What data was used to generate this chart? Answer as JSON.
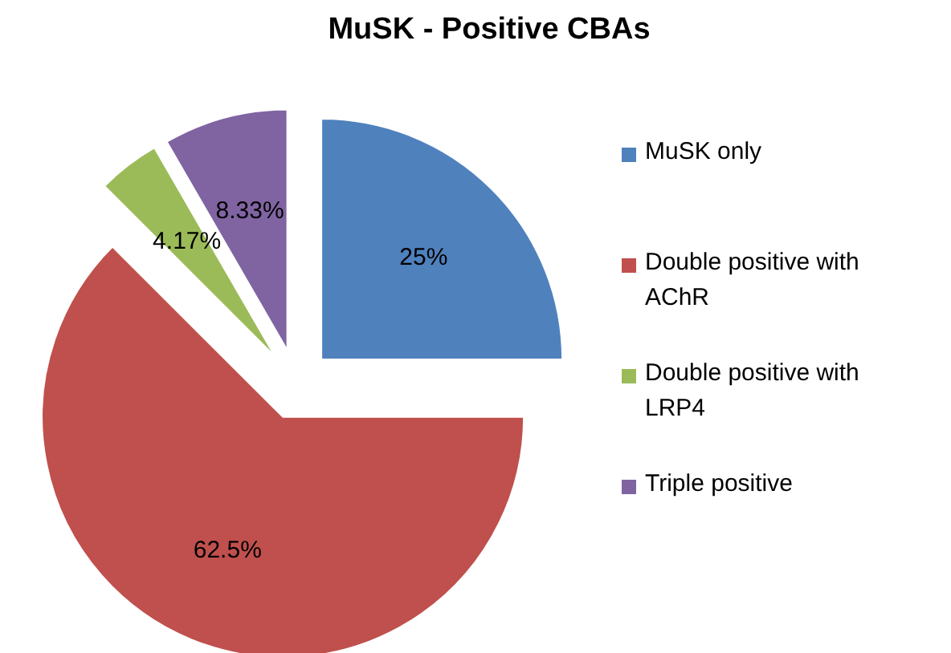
{
  "chart_data": {
    "type": "pie",
    "title": "MuSK - Positive CBAs",
    "categories": [
      "MuSK only",
      "Double positive with AChR",
      "Double positive with LRP4",
      "Triple positive"
    ],
    "values": [
      25,
      62.5,
      4.17,
      8.33
    ],
    "colors": [
      "#4f81bd",
      "#c0504d",
      "#9bbb59",
      "#8064a2"
    ],
    "value_labels": [
      "25%",
      "62.5%",
      "4.17%",
      "8.33%"
    ],
    "legend": "right"
  }
}
